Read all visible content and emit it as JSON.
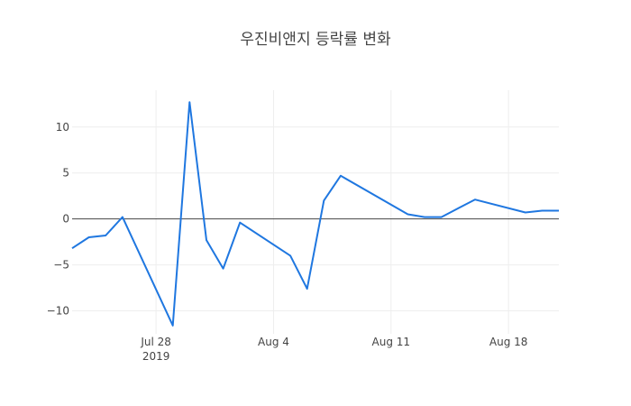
{
  "chart_data": {
    "type": "line",
    "title": "우진비앤지 등락률 변화",
    "xlabel": "",
    "ylabel": "",
    "x_range": [
      "2019-07-23",
      "2019-08-21"
    ],
    "ylim": [
      -12.5,
      14
    ],
    "grid": true,
    "zero_line": true,
    "x_ticks": [
      {
        "date": "2019-07-28",
        "label": "Jul 28",
        "sublabel": "2019"
      },
      {
        "date": "2019-08-04",
        "label": "Aug 4",
        "sublabel": ""
      },
      {
        "date": "2019-08-11",
        "label": "Aug 11",
        "sublabel": ""
      },
      {
        "date": "2019-08-18",
        "label": "Aug 18",
        "sublabel": ""
      }
    ],
    "y_ticks": [
      {
        "value": 10,
        "label": "10"
      },
      {
        "value": 5,
        "label": "5"
      },
      {
        "value": 0,
        "label": "0"
      },
      {
        "value": -5,
        "label": "−5"
      },
      {
        "value": -10,
        "label": "−10"
      }
    ],
    "series": [
      {
        "color": "#1f77e0",
        "points": [
          {
            "x": "2019-07-23",
            "y": -3.2
          },
          {
            "x": "2019-07-24",
            "y": -2.0
          },
          {
            "x": "2019-07-25",
            "y": -1.8
          },
          {
            "x": "2019-07-26",
            "y": 0.2
          },
          {
            "x": "2019-07-29",
            "y": -11.6
          },
          {
            "x": "2019-07-30",
            "y": 12.7
          },
          {
            "x": "2019-07-31",
            "y": -2.3
          },
          {
            "x": "2019-08-01",
            "y": -5.4
          },
          {
            "x": "2019-08-02",
            "y": -0.4
          },
          {
            "x": "2019-08-05",
            "y": -4.0
          },
          {
            "x": "2019-08-06",
            "y": -7.6
          },
          {
            "x": "2019-08-07",
            "y": 2.0
          },
          {
            "x": "2019-08-08",
            "y": 4.7
          },
          {
            "x": "2019-08-12",
            "y": 0.5
          },
          {
            "x": "2019-08-13",
            "y": 0.2
          },
          {
            "x": "2019-08-14",
            "y": 0.2
          },
          {
            "x": "2019-08-16",
            "y": 2.1
          },
          {
            "x": "2019-08-19",
            "y": 0.7
          },
          {
            "x": "2019-08-20",
            "y": 0.9
          },
          {
            "x": "2019-08-21",
            "y": 0.9
          }
        ]
      }
    ]
  }
}
